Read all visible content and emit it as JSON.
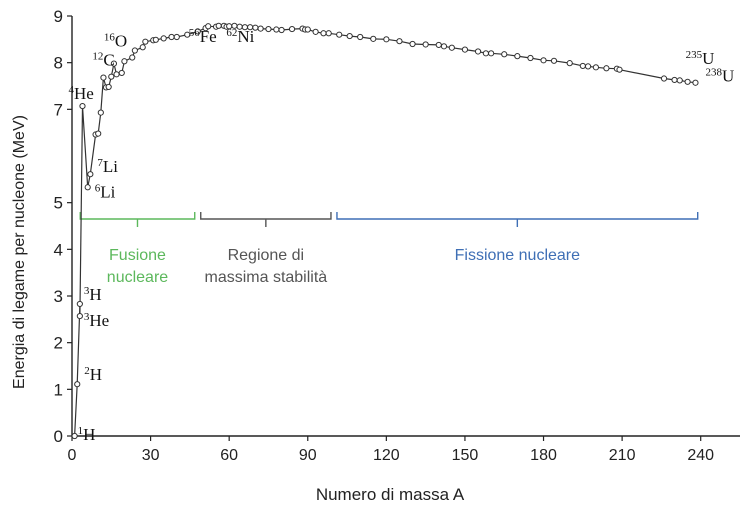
{
  "chart_data": {
    "type": "scatter",
    "title": "",
    "xlabel": "Numero di massa A",
    "ylabel": "Energia di legame per nucleone (MeV)",
    "xlim": [
      0,
      255
    ],
    "ylim": [
      0,
      9
    ],
    "xticks": [
      0,
      30,
      60,
      90,
      120,
      150,
      180,
      210,
      240
    ],
    "yticks": [
      0,
      1,
      2,
      3,
      4,
      5,
      7,
      8,
      9
    ],
    "grid": false,
    "series": [
      {
        "points": [
          [
            1,
            0
          ],
          [
            2,
            1.11
          ],
          [
            3,
            2.83
          ],
          [
            3,
            2.57
          ],
          [
            4,
            7.07
          ],
          [
            6,
            5.33
          ],
          [
            7,
            5.61
          ],
          [
            9,
            6.46
          ],
          [
            10,
            6.48
          ],
          [
            11,
            6.93
          ],
          [
            12,
            7.68
          ],
          [
            13,
            7.47
          ],
          [
            14,
            7.48
          ],
          [
            15,
            7.7
          ],
          [
            16,
            7.98
          ],
          [
            17,
            7.75
          ],
          [
            19,
            7.78
          ],
          [
            20,
            8.03
          ],
          [
            23,
            8.11
          ],
          [
            24,
            8.26
          ],
          [
            27,
            8.33
          ],
          [
            28,
            8.45
          ],
          [
            31,
            8.48
          ],
          [
            32,
            8.49
          ],
          [
            35,
            8.52
          ],
          [
            38,
            8.55
          ],
          [
            40,
            8.55
          ],
          [
            44,
            8.6
          ],
          [
            48,
            8.67
          ],
          [
            51,
            8.74
          ],
          [
            52,
            8.78
          ],
          [
            55,
            8.77
          ],
          [
            56,
            8.79
          ],
          [
            58,
            8.79
          ],
          [
            59,
            8.77
          ],
          [
            60,
            8.78
          ],
          [
            62,
            8.79
          ],
          [
            64,
            8.77
          ],
          [
            66,
            8.76
          ],
          [
            68,
            8.76
          ],
          [
            70,
            8.75
          ],
          [
            72,
            8.73
          ],
          [
            75,
            8.72
          ],
          [
            78,
            8.71
          ],
          [
            80,
            8.7
          ],
          [
            84,
            8.72
          ],
          [
            88,
            8.73
          ],
          [
            89,
            8.71
          ],
          [
            90,
            8.71
          ],
          [
            93,
            8.66
          ],
          [
            96,
            8.63
          ],
          [
            98,
            8.63
          ],
          [
            102,
            8.6
          ],
          [
            106,
            8.57
          ],
          [
            110,
            8.55
          ],
          [
            115,
            8.51
          ],
          [
            120,
            8.5
          ],
          [
            125,
            8.46
          ],
          [
            130,
            8.4
          ],
          [
            135,
            8.39
          ],
          [
            140,
            8.38
          ],
          [
            142,
            8.35
          ],
          [
            145,
            8.32
          ],
          [
            150,
            8.28
          ],
          [
            155,
            8.24
          ],
          [
            158,
            8.2
          ],
          [
            160,
            8.2
          ],
          [
            165,
            8.18
          ],
          [
            170,
            8.14
          ],
          [
            175,
            8.1
          ],
          [
            180,
            8.05
          ],
          [
            184,
            8.04
          ],
          [
            190,
            7.99
          ],
          [
            195,
            7.93
          ],
          [
            197,
            7.92
          ],
          [
            200,
            7.9
          ],
          [
            204,
            7.88
          ],
          [
            208,
            7.87
          ],
          [
            209,
            7.85
          ],
          [
            226,
            7.66
          ],
          [
            230,
            7.63
          ],
          [
            232,
            7.62
          ],
          [
            235,
            7.59
          ],
          [
            238,
            7.57
          ]
        ]
      }
    ],
    "point_labels": [
      {
        "sup": "1",
        "base": "H",
        "x": 1,
        "y": 0
      },
      {
        "sup": "2",
        "base": "H",
        "x": 2,
        "y": 1.11
      },
      {
        "sup": "3",
        "base": "He",
        "x": 3,
        "y": 2.57
      },
      {
        "sup": "3",
        "base": "H",
        "x": 3,
        "y": 2.83
      },
      {
        "sup": "6",
        "base": "Li",
        "x": 6,
        "y": 5.33
      },
      {
        "sup": "7",
        "base": "Li",
        "x": 7,
        "y": 5.61
      },
      {
        "sup": "4",
        "base": "He",
        "x": 4,
        "y": 7.07
      },
      {
        "sup": "12",
        "base": "C",
        "x": 12,
        "y": 7.68
      },
      {
        "sup": "16",
        "base": "O",
        "x": 16,
        "y": 7.98
      },
      {
        "sup": "56",
        "base": "Fe",
        "x": 56,
        "y": 8.79
      },
      {
        "sup": "62",
        "base": "Ni",
        "x": 62,
        "y": 8.79
      },
      {
        "sup": "235",
        "base": "U",
        "x": 235,
        "y": 7.59
      },
      {
        "sup": "238",
        "base": "U",
        "x": 238,
        "y": 7.57
      }
    ],
    "regions": [
      {
        "label": [
          "Fusione",
          "nucleare"
        ],
        "x_start": 2,
        "x_end": 48,
        "color": "#5cb85c"
      },
      {
        "label": [
          "Regione di",
          "massima stabilità"
        ],
        "x_start": 48,
        "x_end": 100,
        "color": "#555555"
      },
      {
        "label": [
          "Fissione nucleare"
        ],
        "x_start": 100,
        "x_end": 240,
        "color": "#3f6fb5"
      }
    ],
    "region_bracket_y": 4.65
  }
}
